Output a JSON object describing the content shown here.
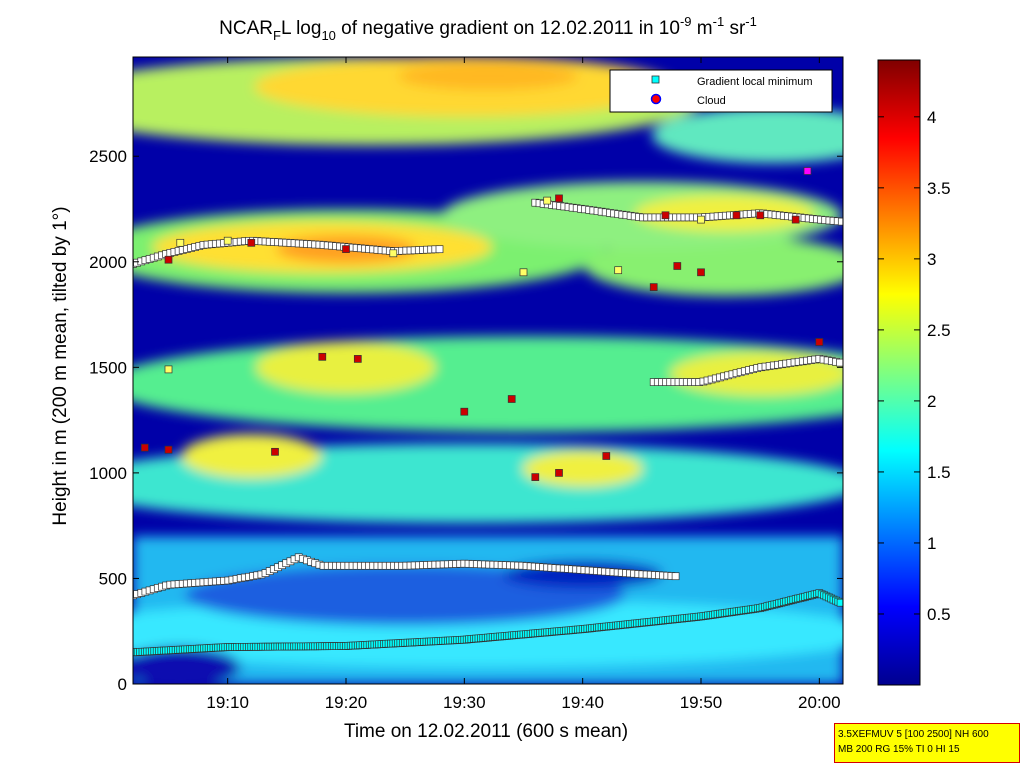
{
  "title": {
    "parts": [
      "NCAR",
      "F",
      "L log",
      "10",
      " of negative gradient on 12.02.2011 in 10",
      "-9",
      " m",
      "-1",
      " sr",
      "-1"
    ]
  },
  "chart_data": {
    "type": "heatmap",
    "xlabel": "Time on 12.02.2011 (600 s mean)",
    "ylabel": "Height in m (200 m mean, tilted by 1°)",
    "xlim": [
      "19:02",
      "20:02"
    ],
    "ylim": [
      0,
      2970
    ],
    "x_ticks": [
      "19:10",
      "19:20",
      "19:30",
      "19:40",
      "19:50",
      "20:00"
    ],
    "y_ticks": [
      0,
      500,
      1000,
      1500,
      2000,
      2500
    ],
    "colorbar": {
      "colormap": "jet",
      "range": [
        0,
        4.4
      ],
      "ticks": [
        0.5,
        1,
        1.5,
        2,
        2.5,
        3,
        3.5,
        4
      ]
    },
    "legend": {
      "placement": "top-right",
      "entries": [
        {
          "label": "Gradient local minimum",
          "marker": "square",
          "color": "#00ffff"
        },
        {
          "label": "Cloud",
          "marker": "circle",
          "color": "#ff0000",
          "edge": "#0000ff"
        }
      ]
    },
    "layers": [
      {
        "name": "boundary",
        "points": [
          [
            "19:02",
            150
          ],
          [
            "19:10",
            175
          ],
          [
            "19:20",
            180
          ],
          [
            "19:30",
            210
          ],
          [
            "19:40",
            260
          ],
          [
            "19:50",
            320
          ],
          [
            "19:55",
            360
          ],
          [
            "20:00",
            430
          ],
          [
            "20:02",
            380
          ]
        ]
      },
      {
        "name": "residual",
        "points": [
          [
            "19:02",
            420
          ],
          [
            "19:05",
            470
          ],
          [
            "19:10",
            490
          ],
          [
            "19:13",
            520
          ],
          [
            "19:16",
            600
          ],
          [
            "19:18",
            560
          ],
          [
            "19:25",
            560
          ],
          [
            "19:30",
            570
          ],
          [
            "19:35",
            560
          ],
          [
            "19:40",
            540
          ],
          [
            "19:45",
            520
          ],
          [
            "19:48",
            510
          ]
        ]
      },
      {
        "name": "layer1500",
        "points": [
          [
            "19:46",
            1430
          ],
          [
            "19:50",
            1430
          ],
          [
            "19:55",
            1500
          ],
          [
            "20:00",
            1540
          ],
          [
            "20:02",
            1520
          ]
        ]
      },
      {
        "name": "layer2000",
        "points": [
          [
            "19:02",
            1990
          ],
          [
            "19:05",
            2040
          ],
          [
            "19:08",
            2080
          ],
          [
            "19:12",
            2100
          ],
          [
            "19:18",
            2080
          ],
          [
            "19:24",
            2050
          ],
          [
            "19:28",
            2060
          ]
        ]
      },
      {
        "name": "layer2200",
        "points": [
          [
            "19:36",
            2280
          ],
          [
            "19:40",
            2250
          ],
          [
            "19:45",
            2210
          ],
          [
            "19:50",
            2210
          ],
          [
            "19:55",
            2230
          ],
          [
            "20:00",
            2200
          ],
          [
            "20:02",
            2190
          ]
        ]
      }
    ]
  },
  "infobox": {
    "line1": "3.5XEFMUV 5 [100 2500] NH 600",
    "line2": "MB 200 RG 15% TI 0 HI 15"
  }
}
